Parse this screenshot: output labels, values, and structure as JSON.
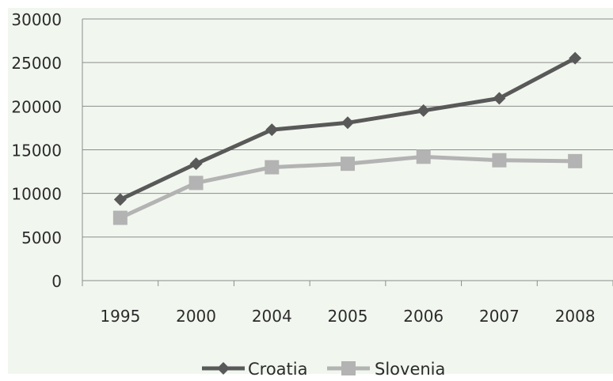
{
  "chart_data": {
    "type": "line",
    "categories": [
      "1995",
      "2000",
      "2004",
      "2005",
      "2006",
      "2007",
      "2008"
    ],
    "ylim": [
      0,
      30000
    ],
    "yticks": [
      0,
      5000,
      10000,
      15000,
      20000,
      25000,
      30000
    ],
    "grid": true,
    "legend_position": "bottom",
    "series": [
      {
        "name": "Croatia",
        "marker": "diamond",
        "color": "#595959",
        "values": [
          9300,
          13400,
          17300,
          18100,
          19500,
          20900,
          25500
        ]
      },
      {
        "name": "Slovenia",
        "marker": "square",
        "color": "#b3b3b3",
        "values": [
          7200,
          11200,
          13000,
          13400,
          14200,
          13800,
          13700
        ]
      }
    ]
  },
  "colors": {
    "plot_background": "#f1f7ef",
    "gridline": "#8c8c8c",
    "axis": "#8c8c8c"
  }
}
